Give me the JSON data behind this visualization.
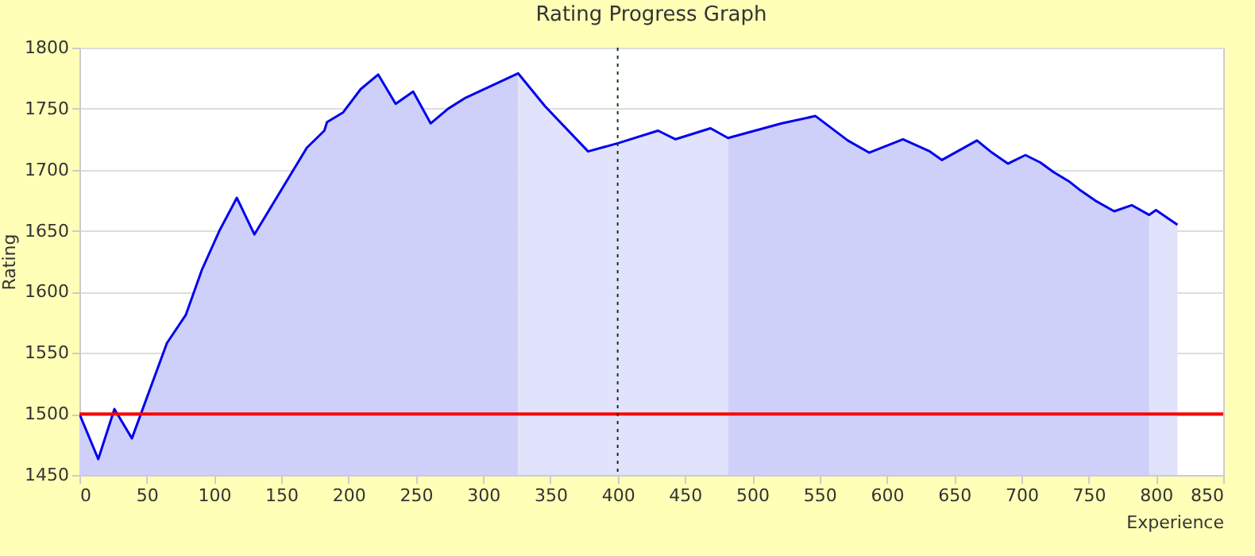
{
  "chart_data": {
    "type": "line",
    "title": "Rating Progress Graph",
    "xlabel": "Experience",
    "ylabel": "Rating",
    "xlim": [
      0,
      850
    ],
    "xticks": [
      0,
      50,
      100,
      150,
      200,
      250,
      300,
      350,
      400,
      450,
      500,
      550,
      600,
      650,
      700,
      750,
      800,
      850
    ],
    "ylim": [
      1450,
      1800
    ],
    "yticks": [
      1450,
      1500,
      1550,
      1600,
      1650,
      1700,
      1750,
      1800
    ],
    "grid": "y",
    "series": [
      {
        "type": "area",
        "color": "#cfd0fa",
        "x": [
          0,
          14,
          26,
          39,
          65,
          79,
          91,
          104,
          117,
          130,
          169,
          182,
          184,
          196,
          209,
          222,
          235,
          248,
          261,
          274,
          287,
          326
        ],
        "values": [
          1500,
          1463,
          1504,
          1480,
          1558,
          1581,
          1618,
          1650,
          1677,
          1647,
          1718,
          1732,
          1739,
          1747,
          1766,
          1778,
          1754,
          1764,
          1738,
          1750,
          1759,
          1779
        ]
      },
      {
        "type": "area",
        "color": "#e1e2fb",
        "x": [
          326,
          346,
          378,
          401,
          430,
          443,
          469,
          482
        ],
        "values": [
          1779,
          1752,
          1715,
          1722,
          1732,
          1725,
          1734,
          1726
        ]
      },
      {
        "type": "area",
        "color": "#cfd0fa",
        "x": [
          482,
          522,
          547,
          571,
          587,
          612,
          632,
          641,
          667,
          677,
          690,
          703,
          714,
          724,
          736,
          744,
          756,
          769,
          782,
          795
        ],
        "values": [
          1726,
          1738,
          1744,
          1724,
          1714,
          1725,
          1715,
          1708,
          1724,
          1715,
          1705,
          1712,
          1706,
          1698,
          1690,
          1683,
          1674,
          1666,
          1671,
          1663
        ]
      },
      {
        "type": "area",
        "color": "#e1e2fb",
        "x": [
          795,
          800,
          816
        ],
        "values": [
          1663,
          1667,
          1655
        ]
      },
      {
        "color": "#0000ee",
        "x": [
          0,
          14,
          26,
          39,
          65,
          79,
          91,
          104,
          117,
          130,
          169,
          182,
          184,
          196,
          209,
          222,
          235,
          248,
          261,
          274,
          287,
          326,
          346,
          378,
          401,
          430,
          443,
          469,
          482,
          522,
          547,
          571,
          587,
          612,
          632,
          641,
          667,
          677,
          690,
          703,
          714,
          724,
          736,
          744,
          756,
          769,
          782,
          795,
          800,
          816
        ],
        "values": [
          1500,
          1463,
          1504,
          1480,
          1558,
          1581,
          1618,
          1650,
          1677,
          1647,
          1718,
          1732,
          1739,
          1747,
          1766,
          1778,
          1754,
          1764,
          1738,
          1750,
          1759,
          1779,
          1752,
          1715,
          1722,
          1732,
          1725,
          1734,
          1726,
          1738,
          1744,
          1724,
          1714,
          1725,
          1715,
          1708,
          1724,
          1715,
          1705,
          1712,
          1706,
          1698,
          1690,
          1683,
          1674,
          1666,
          1671,
          1663,
          1667,
          1655
        ]
      }
    ],
    "ref_lines": [
      {
        "axis": "y",
        "value": 1500,
        "color": "#ff0000",
        "line_style": "solid"
      },
      {
        "axis": "x",
        "value": 400,
        "color": "#004000",
        "line_style": "dotted"
      }
    ]
  }
}
